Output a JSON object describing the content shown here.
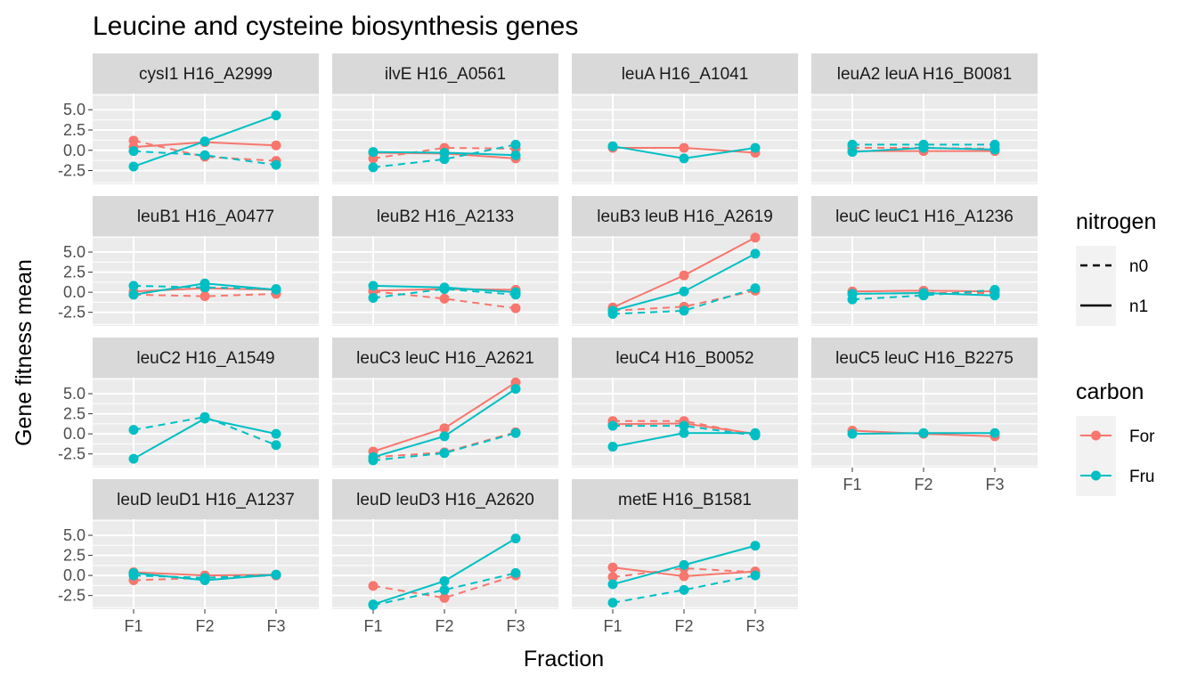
{
  "chart_data": {
    "type": "line",
    "title": "Leucine and cysteine biosynthesis genes",
    "xlabel": "Fraction",
    "ylabel": "Gene fitness mean",
    "x_categories": [
      "F1",
      "F2",
      "F3"
    ],
    "y_ticks": [
      5.0,
      2.5,
      0.0,
      -2.5
    ],
    "y_tick_labels": [
      "5.0",
      "2.5",
      "0.0",
      "-2.5"
    ],
    "ylim": [
      -4.2,
      7.0
    ],
    "facet_layout": {
      "ncol": 4,
      "nrow": 4
    },
    "legends": [
      {
        "title": "nitrogen",
        "kind": "linetype",
        "entries": [
          {
            "label": "n0",
            "linetype": "dashed"
          },
          {
            "label": "n1",
            "linetype": "solid"
          }
        ]
      },
      {
        "title": "carbon",
        "kind": "color",
        "entries": [
          {
            "label": "For",
            "color": "#F8766D"
          },
          {
            "label": "Fru",
            "color": "#00BFC4"
          }
        ]
      }
    ],
    "panels": [
      {
        "label": "cysI1 H16_A2999",
        "series": [
          {
            "carbon": "For",
            "nitrogen": "n1",
            "values": [
              0.4,
              1.0,
              0.6
            ]
          },
          {
            "carbon": "For",
            "nitrogen": "n0",
            "values": [
              1.2,
              -0.8,
              -1.3
            ]
          },
          {
            "carbon": "Fru",
            "nitrogen": "n1",
            "values": [
              -2.0,
              1.1,
              4.3
            ]
          },
          {
            "carbon": "Fru",
            "nitrogen": "n0",
            "values": [
              -0.1,
              -0.6,
              -1.8
            ]
          }
        ]
      },
      {
        "label": "ilvE H16_A0561",
        "series": [
          {
            "carbon": "For",
            "nitrogen": "n1",
            "values": [
              -0.3,
              -0.4,
              -1.0
            ]
          },
          {
            "carbon": "For",
            "nitrogen": "n0",
            "values": [
              -1.0,
              0.3,
              0.2
            ]
          },
          {
            "carbon": "Fru",
            "nitrogen": "n1",
            "values": [
              -0.2,
              -0.3,
              -0.6
            ]
          },
          {
            "carbon": "Fru",
            "nitrogen": "n0",
            "values": [
              -2.1,
              -1.1,
              0.7
            ]
          }
        ]
      },
      {
        "label": "leuA H16_A1041",
        "series": [
          {
            "carbon": "For",
            "nitrogen": "n1",
            "values": [
              0.3,
              0.3,
              -0.3
            ]
          },
          {
            "carbon": "Fru",
            "nitrogen": "n1",
            "values": [
              0.5,
              -1.0,
              0.3
            ]
          }
        ]
      },
      {
        "label": "leuA2 leuA H16_B0081",
        "series": [
          {
            "carbon": "For",
            "nitrogen": "n1",
            "values": [
              -0.1,
              -0.1,
              -0.1
            ]
          },
          {
            "carbon": "For",
            "nitrogen": "n0",
            "values": [
              0.3,
              0.3,
              0.2
            ]
          },
          {
            "carbon": "Fru",
            "nitrogen": "n1",
            "values": [
              -0.2,
              0.3,
              0.1
            ]
          },
          {
            "carbon": "Fru",
            "nitrogen": "n0",
            "values": [
              0.7,
              0.7,
              0.7
            ]
          }
        ]
      },
      {
        "label": "leuB1 H16_A0477",
        "series": [
          {
            "carbon": "For",
            "nitrogen": "n1",
            "values": [
              0.1,
              0.5,
              0.3
            ]
          },
          {
            "carbon": "For",
            "nitrogen": "n0",
            "values": [
              -0.3,
              -0.5,
              -0.2
            ]
          },
          {
            "carbon": "Fru",
            "nitrogen": "n1",
            "values": [
              -0.3,
              1.1,
              0.3
            ]
          },
          {
            "carbon": "Fru",
            "nitrogen": "n0",
            "values": [
              0.8,
              0.6,
              0.4
            ]
          }
        ]
      },
      {
        "label": "leuB2 H16_A2133",
        "series": [
          {
            "carbon": "For",
            "nitrogen": "n1",
            "values": [
              0.2,
              0.4,
              0.3
            ]
          },
          {
            "carbon": "For",
            "nitrogen": "n0",
            "values": [
              0.1,
              -0.8,
              -2.0
            ]
          },
          {
            "carbon": "Fru",
            "nitrogen": "n1",
            "values": [
              0.8,
              0.6,
              0.0
            ]
          },
          {
            "carbon": "Fru",
            "nitrogen": "n0",
            "values": [
              -0.7,
              0.4,
              -0.3
            ]
          }
        ]
      },
      {
        "label": "leuB3 leuB H16_A2619",
        "series": [
          {
            "carbon": "For",
            "nitrogen": "n1",
            "values": [
              -1.9,
              2.1,
              6.8
            ]
          },
          {
            "carbon": "For",
            "nitrogen": "n0",
            "values": [
              -2.3,
              -1.8,
              0.2
            ]
          },
          {
            "carbon": "Fru",
            "nitrogen": "n1",
            "values": [
              -2.3,
              0.1,
              4.8
            ]
          },
          {
            "carbon": "Fru",
            "nitrogen": "n0",
            "values": [
              -2.7,
              -2.3,
              0.5
            ]
          }
        ]
      },
      {
        "label": "leuC leuC1 H16_A1236",
        "series": [
          {
            "carbon": "For",
            "nitrogen": "n1",
            "values": [
              0.1,
              0.2,
              0.1
            ]
          },
          {
            "carbon": "For",
            "nitrogen": "n0",
            "values": [
              -0.2,
              -0.1,
              -0.1
            ]
          },
          {
            "carbon": "Fru",
            "nitrogen": "n1",
            "values": [
              -0.2,
              -0.1,
              -0.4
            ]
          },
          {
            "carbon": "Fru",
            "nitrogen": "n0",
            "values": [
              -0.9,
              -0.4,
              0.3
            ]
          }
        ]
      },
      {
        "label": "leuC2 H16_A1549",
        "series": [
          {
            "carbon": "Fru",
            "nitrogen": "n1",
            "values": [
              -3.1,
              1.9,
              0.0
            ]
          },
          {
            "carbon": "Fru",
            "nitrogen": "n0",
            "values": [
              0.5,
              2.1,
              -1.4
            ]
          }
        ]
      },
      {
        "label": "leuC3 leuC H16_A2621",
        "series": [
          {
            "carbon": "For",
            "nitrogen": "n1",
            "values": [
              -2.2,
              0.7,
              6.4
            ]
          },
          {
            "carbon": "For",
            "nitrogen": "n0",
            "values": [
              -2.9,
              -2.3,
              0.2
            ]
          },
          {
            "carbon": "Fru",
            "nitrogen": "n1",
            "values": [
              -2.9,
              -0.3,
              5.6
            ]
          },
          {
            "carbon": "Fru",
            "nitrogen": "n0",
            "values": [
              -3.3,
              -2.4,
              0.1
            ]
          }
        ]
      },
      {
        "label": "leuC4 H16_B0052",
        "series": [
          {
            "carbon": "For",
            "nitrogen": "n1",
            "values": [
              1.2,
              1.3,
              0.0
            ]
          },
          {
            "carbon": "For",
            "nitrogen": "n0",
            "values": [
              1.6,
              1.6,
              -0.1
            ]
          },
          {
            "carbon": "Fru",
            "nitrogen": "n1",
            "values": [
              -1.6,
              0.1,
              0.1
            ]
          },
          {
            "carbon": "Fru",
            "nitrogen": "n0",
            "values": [
              1.0,
              1.0,
              -0.2
            ]
          }
        ]
      },
      {
        "label": "leuC5 leuC H16_B2275",
        "series": [
          {
            "carbon": "For",
            "nitrogen": "n1",
            "values": [
              0.4,
              0.0,
              -0.3
            ]
          },
          {
            "carbon": "Fru",
            "nitrogen": "n1",
            "values": [
              0.0,
              0.1,
              0.1
            ]
          }
        ]
      },
      {
        "label": "leuD leuD1 H16_A1237",
        "series": [
          {
            "carbon": "For",
            "nitrogen": "n1",
            "values": [
              0.4,
              0.0,
              0.1
            ]
          },
          {
            "carbon": "For",
            "nitrogen": "n0",
            "values": [
              -0.6,
              -0.3,
              0.0
            ]
          },
          {
            "carbon": "Fru",
            "nitrogen": "n1",
            "values": [
              0.3,
              -0.6,
              0.1
            ]
          },
          {
            "carbon": "Fru",
            "nitrogen": "n0",
            "values": [
              0.0,
              -0.3,
              0.1
            ]
          }
        ]
      },
      {
        "label": "leuD leuD3 H16_A2620",
        "series": [
          {
            "carbon": "For",
            "nitrogen": "n0",
            "values": [
              -1.3,
              -2.8,
              0.0
            ]
          },
          {
            "carbon": "Fru",
            "nitrogen": "n1",
            "values": [
              -3.6,
              -0.7,
              4.6
            ]
          },
          {
            "carbon": "Fru",
            "nitrogen": "n0",
            "values": [
              -3.7,
              -1.8,
              0.3
            ]
          }
        ]
      },
      {
        "label": "metE H16_B1581",
        "series": [
          {
            "carbon": "For",
            "nitrogen": "n1",
            "values": [
              1.0,
              -0.1,
              0.5
            ]
          },
          {
            "carbon": "For",
            "nitrogen": "n0",
            "values": [
              -0.2,
              0.9,
              0.4
            ]
          },
          {
            "carbon": "Fru",
            "nitrogen": "n1",
            "values": [
              -1.1,
              1.3,
              3.7
            ]
          },
          {
            "carbon": "Fru",
            "nitrogen": "n0",
            "values": [
              -3.4,
              -1.8,
              0.0
            ]
          }
        ]
      }
    ]
  }
}
